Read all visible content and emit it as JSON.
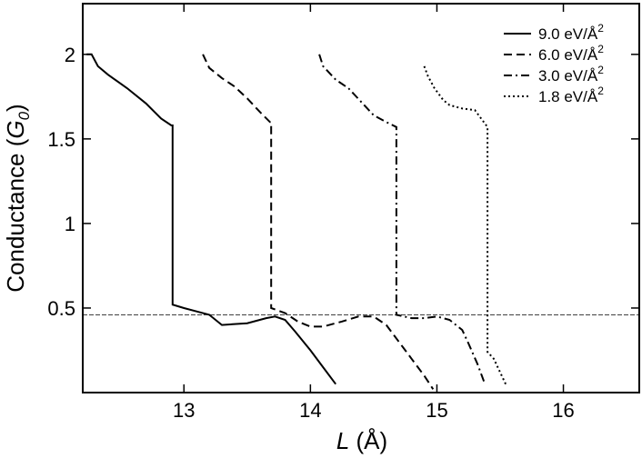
{
  "chart_data": {
    "type": "line",
    "title": "",
    "xlabel": {
      "italic": "L",
      "rest": " (Å)"
    },
    "ylabel": {
      "main": "Conductance (",
      "symbol": "G",
      "sub": "0",
      "close": ")"
    },
    "xlim": [
      12.2,
      16.6
    ],
    "ylim": [
      0,
      2.3
    ],
    "xticks": [
      13,
      14,
      15,
      16
    ],
    "xtick_labels": [
      "13",
      "14",
      "15",
      "16"
    ],
    "yticks": [
      0.5,
      1,
      1.5,
      2
    ],
    "ytick_labels": [
      "0.5",
      "1",
      "1.5",
      "2"
    ],
    "grid": false,
    "legend_position": "top-right",
    "reference_line": {
      "y": 0.46,
      "style": "dashed-thin"
    },
    "series": [
      {
        "name": "9.0 eV/Å",
        "name_sup": "2",
        "dash": "solid",
        "points": [
          [
            12.23,
            2.0
          ],
          [
            12.27,
            2.0
          ],
          [
            12.32,
            1.93
          ],
          [
            12.4,
            1.88
          ],
          [
            12.55,
            1.8
          ],
          [
            12.7,
            1.71
          ],
          [
            12.82,
            1.62
          ],
          [
            12.9,
            1.58
          ],
          [
            12.91,
            1.58
          ],
          [
            12.91,
            1.1
          ],
          [
            12.91,
            0.52
          ],
          [
            13.0,
            0.5
          ],
          [
            13.1,
            0.48
          ],
          [
            13.2,
            0.46
          ],
          [
            13.3,
            0.4
          ],
          [
            13.5,
            0.41
          ],
          [
            13.65,
            0.44
          ],
          [
            13.72,
            0.45
          ],
          [
            13.8,
            0.43
          ],
          [
            13.88,
            0.36
          ],
          [
            14.0,
            0.25
          ],
          [
            14.1,
            0.15
          ],
          [
            14.2,
            0.05
          ]
        ]
      },
      {
        "name": "6.0 eV/Å",
        "name_sup": "2",
        "dash": "dashed",
        "points": [
          [
            13.15,
            2.0
          ],
          [
            13.2,
            1.92
          ],
          [
            13.3,
            1.86
          ],
          [
            13.4,
            1.81
          ],
          [
            13.5,
            1.74
          ],
          [
            13.6,
            1.66
          ],
          [
            13.68,
            1.6
          ],
          [
            13.69,
            1.6
          ],
          [
            13.69,
            0.5
          ],
          [
            13.8,
            0.47
          ],
          [
            13.9,
            0.42
          ],
          [
            14.0,
            0.39
          ],
          [
            14.1,
            0.39
          ],
          [
            14.25,
            0.42
          ],
          [
            14.38,
            0.45
          ],
          [
            14.5,
            0.45
          ],
          [
            14.6,
            0.4
          ],
          [
            14.7,
            0.3
          ],
          [
            14.8,
            0.2
          ],
          [
            14.9,
            0.1
          ],
          [
            14.97,
            0.02
          ]
        ]
      },
      {
        "name": "3.0 eV/Å",
        "name_sup": "2",
        "dash": "dashdot",
        "points": [
          [
            14.07,
            2.0
          ],
          [
            14.1,
            1.93
          ],
          [
            14.2,
            1.85
          ],
          [
            14.3,
            1.8
          ],
          [
            14.4,
            1.72
          ],
          [
            14.5,
            1.64
          ],
          [
            14.6,
            1.6
          ],
          [
            14.68,
            1.57
          ],
          [
            14.68,
            0.46
          ],
          [
            14.8,
            0.44
          ],
          [
            14.9,
            0.44
          ],
          [
            15.0,
            0.45
          ],
          [
            15.1,
            0.43
          ],
          [
            15.2,
            0.37
          ],
          [
            15.25,
            0.29
          ],
          [
            15.32,
            0.17
          ],
          [
            15.38,
            0.05
          ]
        ]
      },
      {
        "name": "1.8 eV/Å",
        "name_sup": "2",
        "dash": "dotted",
        "points": [
          [
            14.9,
            1.93
          ],
          [
            14.93,
            1.87
          ],
          [
            14.98,
            1.8
          ],
          [
            15.05,
            1.73
          ],
          [
            15.1,
            1.7
          ],
          [
            15.2,
            1.68
          ],
          [
            15.3,
            1.67
          ],
          [
            15.4,
            1.57
          ],
          [
            15.4,
            1.0
          ],
          [
            15.4,
            0.24
          ],
          [
            15.45,
            0.2
          ],
          [
            15.5,
            0.12
          ],
          [
            15.55,
            0.04
          ]
        ]
      }
    ]
  }
}
